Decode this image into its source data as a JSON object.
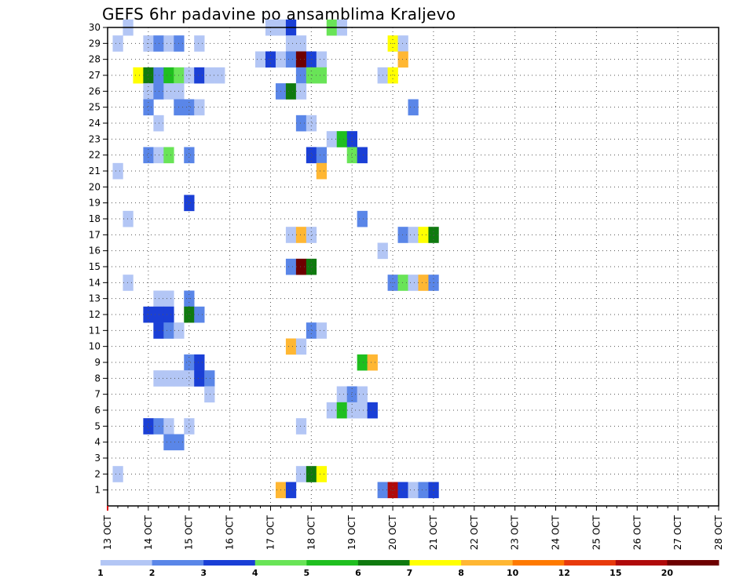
{
  "chart_data": {
    "type": "heatmap",
    "title": "GEFS 6hr padavine po ansamblima Kraljevo",
    "x_ticks": [
      "13 OCT",
      "14 OCT",
      "15 OCT",
      "16 OCT",
      "17 OCT",
      "18 OCT",
      "19 OCT",
      "20 OCT",
      "21 OCT",
      "22 OCT",
      "23 OCT",
      "24 OCT",
      "25 OCT",
      "26 OCT",
      "27 OCT",
      "28 OCT"
    ],
    "y_ticks": [
      "1",
      "2",
      "3",
      "4",
      "5",
      "6",
      "7",
      "8",
      "9",
      "10",
      "11",
      "12",
      "13",
      "14",
      "15",
      "16",
      "17",
      "18",
      "19",
      "20",
      "21",
      "22",
      "23",
      "24",
      "25",
      "26",
      "27",
      "28",
      "29",
      "30"
    ],
    "y_range": [
      0,
      30
    ],
    "x_range_days": [
      0,
      15
    ],
    "grid": true,
    "legend_position": "bottom",
    "color_bins": [
      {
        "label": "1",
        "color": "#b3c6f5"
      },
      {
        "label": "2",
        "color": "#5a86e8"
      },
      {
        "label": "3",
        "color": "#1a3fd6"
      },
      {
        "label": "4",
        "color": "#69e457"
      },
      {
        "label": "5",
        "color": "#1fbf1f"
      },
      {
        "label": "6",
        "color": "#0f7a0f"
      },
      {
        "label": "7",
        "color": "#ffff00"
      },
      {
        "label": "8",
        "color": "#ffb733"
      },
      {
        "label": "10",
        "color": "#ff7a00"
      },
      {
        "label": "12",
        "color": "#e83a0c"
      },
      {
        "label": "15",
        "color": "#b00a0a"
      },
      {
        "label": "20",
        "color": "#6e0000"
      }
    ],
    "cells_note": "Each entry: [member, period_index, color_bin_index]; period_index = 6h steps after 13 OCT 00Z",
    "cells": [
      [
        30,
        2,
        0
      ],
      [
        30,
        16,
        0
      ],
      [
        30,
        17,
        0
      ],
      [
        30,
        18,
        2
      ],
      [
        30,
        22,
        3
      ],
      [
        30,
        23,
        0
      ],
      [
        29,
        1,
        0
      ],
      [
        29,
        4,
        0
      ],
      [
        29,
        5,
        1
      ],
      [
        29,
        6,
        0
      ],
      [
        29,
        7,
        1
      ],
      [
        29,
        9,
        0
      ],
      [
        29,
        18,
        0
      ],
      [
        29,
        19,
        0
      ],
      [
        29,
        28,
        6
      ],
      [
        29,
        29,
        0
      ],
      [
        28,
        15,
        0
      ],
      [
        28,
        16,
        2
      ],
      [
        28,
        17,
        0
      ],
      [
        28,
        18,
        1
      ],
      [
        28,
        19,
        11
      ],
      [
        28,
        20,
        2
      ],
      [
        28,
        21,
        0
      ],
      [
        28,
        29,
        7
      ],
      [
        27,
        3,
        6
      ],
      [
        27,
        4,
        5
      ],
      [
        27,
        5,
        1
      ],
      [
        27,
        6,
        4
      ],
      [
        27,
        7,
        3
      ],
      [
        27,
        8,
        0
      ],
      [
        27,
        9,
        2
      ],
      [
        27,
        10,
        0
      ],
      [
        27,
        11,
        0
      ],
      [
        27,
        19,
        1
      ],
      [
        27,
        20,
        3
      ],
      [
        27,
        21,
        3
      ],
      [
        27,
        27,
        0
      ],
      [
        27,
        28,
        6
      ],
      [
        26,
        4,
        0
      ],
      [
        26,
        5,
        1
      ],
      [
        26,
        6,
        0
      ],
      [
        26,
        7,
        0
      ],
      [
        26,
        17,
        1
      ],
      [
        26,
        18,
        5
      ],
      [
        26,
        19,
        0
      ],
      [
        25,
        4,
        1
      ],
      [
        25,
        7,
        1
      ],
      [
        25,
        8,
        1
      ],
      [
        25,
        9,
        0
      ],
      [
        25,
        30,
        1
      ],
      [
        24,
        5,
        0
      ],
      [
        24,
        19,
        1
      ],
      [
        24,
        20,
        0
      ],
      [
        23,
        22,
        0
      ],
      [
        23,
        23,
        4
      ],
      [
        23,
        24,
        2
      ],
      [
        22,
        4,
        1
      ],
      [
        22,
        5,
        0
      ],
      [
        22,
        6,
        3
      ],
      [
        22,
        8,
        1
      ],
      [
        22,
        20,
        2
      ],
      [
        22,
        21,
        1
      ],
      [
        22,
        24,
        3
      ],
      [
        22,
        25,
        2
      ],
      [
        21,
        1,
        0
      ],
      [
        21,
        21,
        7
      ],
      [
        19,
        8,
        2
      ],
      [
        18,
        2,
        0
      ],
      [
        18,
        25,
        1
      ],
      [
        17,
        18,
        0
      ],
      [
        17,
        19,
        7
      ],
      [
        17,
        20,
        0
      ],
      [
        17,
        29,
        1
      ],
      [
        17,
        30,
        0
      ],
      [
        17,
        31,
        6
      ],
      [
        17,
        32,
        5
      ],
      [
        16,
        27,
        0
      ],
      [
        15,
        18,
        1
      ],
      [
        15,
        19,
        11
      ],
      [
        15,
        20,
        5
      ],
      [
        14,
        2,
        0
      ],
      [
        14,
        28,
        1
      ],
      [
        14,
        29,
        3
      ],
      [
        14,
        30,
        0
      ],
      [
        14,
        31,
        7
      ],
      [
        14,
        32,
        1
      ],
      [
        13,
        5,
        0
      ],
      [
        13,
        6,
        0
      ],
      [
        13,
        8,
        1
      ],
      [
        12,
        4,
        2
      ],
      [
        12,
        5,
        2
      ],
      [
        12,
        6,
        2
      ],
      [
        12,
        8,
        5
      ],
      [
        12,
        9,
        1
      ],
      [
        11,
        5,
        2
      ],
      [
        11,
        6,
        1
      ],
      [
        11,
        7,
        0
      ],
      [
        11,
        20,
        1
      ],
      [
        11,
        21,
        0
      ],
      [
        10,
        18,
        7
      ],
      [
        10,
        19,
        0
      ],
      [
        9,
        8,
        1
      ],
      [
        9,
        9,
        2
      ],
      [
        9,
        25,
        4
      ],
      [
        9,
        26,
        7
      ],
      [
        8,
        5,
        0
      ],
      [
        8,
        6,
        0
      ],
      [
        8,
        7,
        0
      ],
      [
        8,
        8,
        0
      ],
      [
        8,
        9,
        2
      ],
      [
        8,
        10,
        1
      ],
      [
        7,
        10,
        0
      ],
      [
        7,
        23,
        0
      ],
      [
        7,
        24,
        1
      ],
      [
        7,
        25,
        0
      ],
      [
        6,
        22,
        0
      ],
      [
        6,
        23,
        4
      ],
      [
        6,
        24,
        0
      ],
      [
        6,
        25,
        0
      ],
      [
        6,
        26,
        2
      ],
      [
        5,
        4,
        2
      ],
      [
        5,
        5,
        1
      ],
      [
        5,
        6,
        0
      ],
      [
        5,
        8,
        0
      ],
      [
        5,
        19,
        0
      ],
      [
        4,
        6,
        1
      ],
      [
        4,
        7,
        1
      ],
      [
        2,
        1,
        0
      ],
      [
        2,
        19,
        0
      ],
      [
        2,
        20,
        5
      ],
      [
        2,
        21,
        6
      ],
      [
        1,
        17,
        7
      ],
      [
        1,
        18,
        2
      ],
      [
        1,
        27,
        1
      ],
      [
        1,
        28,
        10
      ],
      [
        1,
        29,
        2
      ],
      [
        1,
        30,
        0
      ],
      [
        1,
        31,
        1
      ],
      [
        1,
        32,
        2
      ]
    ]
  }
}
